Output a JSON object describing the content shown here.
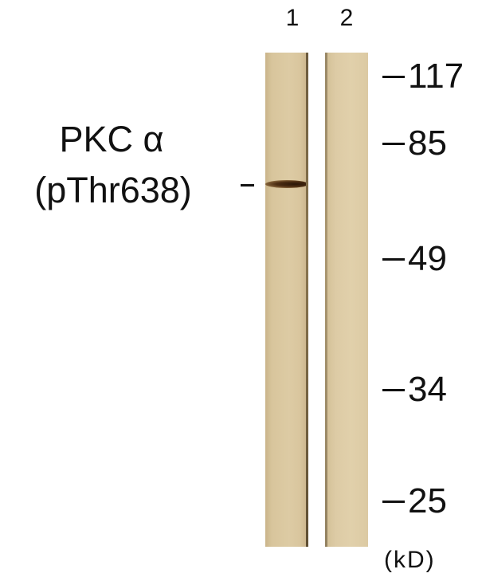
{
  "lanes": {
    "lane_1_label": "1",
    "lane_2_label": "2"
  },
  "band_label": {
    "line1": "PKC α",
    "line2": "(pThr638)"
  },
  "markers": {
    "m117": "117",
    "m85": "85",
    "m49": "49",
    "m34": "34",
    "m25": "25"
  },
  "unit": "(kD)",
  "colors": {
    "membrane": "#d8c59c",
    "band": "#3a2010",
    "text": "#111111"
  }
}
